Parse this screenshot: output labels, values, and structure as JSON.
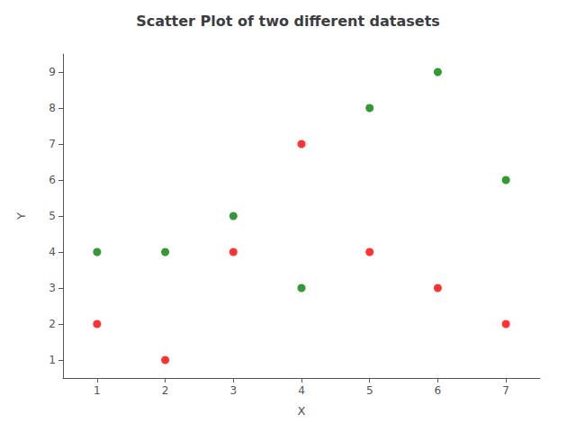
{
  "chart_data": {
    "type": "scatter",
    "title": "Scatter Plot of two different datasets",
    "xlabel": "X",
    "ylabel": "Y",
    "series": [
      {
        "color": "green",
        "x": [
          1,
          2,
          3,
          4,
          5,
          6,
          7
        ],
        "values": [
          4,
          4,
          5,
          3,
          8,
          9,
          6
        ]
      },
      {
        "color": "red",
        "x": [
          1,
          2,
          3,
          4,
          5,
          6,
          7
        ],
        "values": [
          2,
          1,
          4,
          7,
          4,
          3,
          2
        ]
      }
    ],
    "xlim": [
      0.5,
      7.5
    ],
    "ylim": [
      0.5,
      9.5
    ],
    "xticks": [
      1,
      2,
      3,
      4,
      5,
      6,
      7
    ],
    "yticks": [
      1,
      2,
      3,
      4,
      5,
      6,
      7,
      8,
      9
    ],
    "grid": false
  }
}
